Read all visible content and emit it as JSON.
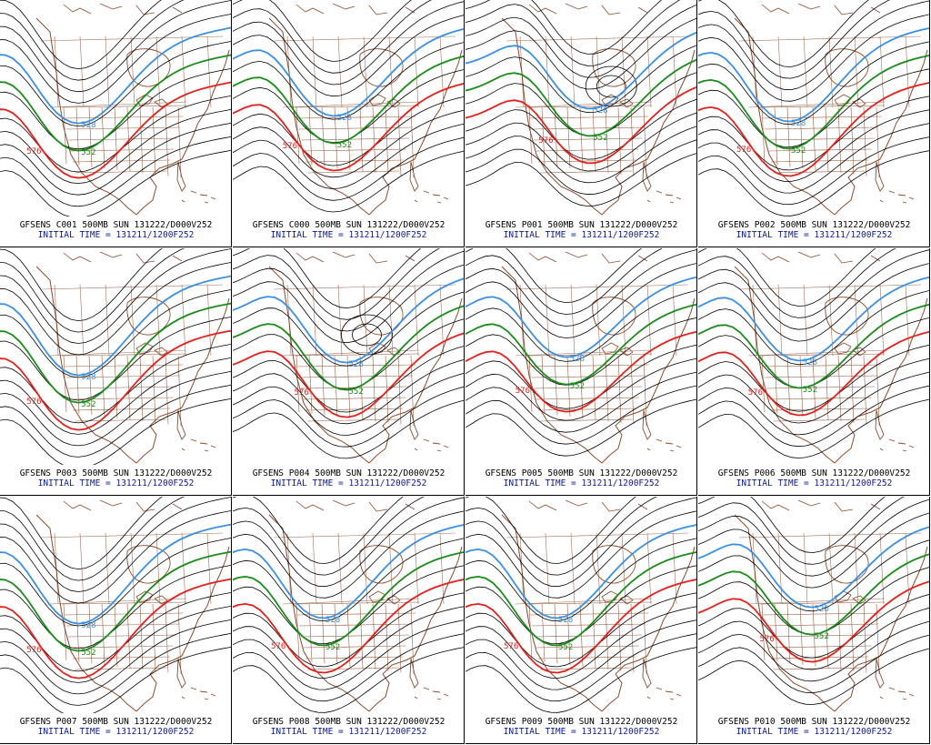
{
  "figure": {
    "contours": {
      "blue": {
        "value": "528",
        "color": "#3b8fe0"
      },
      "green": {
        "value": "552",
        "color": "#1a8a1a"
      },
      "red": {
        "value": "576",
        "color": "#e0201a"
      },
      "black": {
        "color": "#000000"
      }
    },
    "map_color": "#8b4a2b",
    "panels": [
      {
        "member": "C001",
        "title": "GFSENS C001 500MB SUN 131222/D000V252",
        "initial": "INITIAL TIME = 131211/1200F252",
        "trough": 0.35,
        "depth": 1.0,
        "cutoff": false
      },
      {
        "member": "C000",
        "title": "GFSENS C000 500MB SUN 131222/D000V252",
        "initial": "INITIAL TIME = 131211/1200F252",
        "trough": 0.45,
        "depth": 0.95,
        "cutoff": false
      },
      {
        "member": "P001",
        "title": "GFSENS P001 500MB SUN 131222/D000V252",
        "initial": "INITIAL TIME = 131211/1200F252",
        "trough": 0.55,
        "depth": 0.9,
        "cutoff": true
      },
      {
        "member": "P002",
        "title": "GFSENS P002 500MB SUN 131222/D000V252",
        "initial": "INITIAL TIME = 131211/1200F252",
        "trough": 0.4,
        "depth": 1.0,
        "cutoff": false
      },
      {
        "member": "P003",
        "title": "GFSENS P003 500MB SUN 131222/D000V252",
        "initial": "INITIAL TIME = 131211/1200F252",
        "trough": 0.35,
        "depth": 1.05,
        "cutoff": false
      },
      {
        "member": "P004",
        "title": "GFSENS P004 500MB SUN 131222/D000V252",
        "initial": "INITIAL TIME = 131211/1200F252",
        "trough": 0.5,
        "depth": 0.95,
        "cutoff": true
      },
      {
        "member": "P005",
        "title": "GFSENS P005 500MB SUN 131222/D000V252",
        "initial": "INITIAL TIME = 131211/1200F252",
        "trough": 0.45,
        "depth": 0.85,
        "cutoff": false
      },
      {
        "member": "P006",
        "title": "GFSENS P006 500MB SUN 131222/D000V252",
        "initial": "INITIAL TIME = 131211/1200F252",
        "trough": 0.45,
        "depth": 0.9,
        "cutoff": false
      },
      {
        "member": "P007",
        "title": "GFSENS P007 500MB SUN 131222/D000V252",
        "initial": "INITIAL TIME = 131211/1200F252",
        "trough": 0.35,
        "depth": 1.05,
        "cutoff": false
      },
      {
        "member": "P008",
        "title": "GFSENS P008 500MB SUN 131222/D000V252",
        "initial": "INITIAL TIME = 131211/1200F252",
        "trough": 0.4,
        "depth": 1.0,
        "cutoff": false
      },
      {
        "member": "P009",
        "title": "GFSENS P009 500MB SUN 131222/D000V252",
        "initial": "INITIAL TIME = 131211/1200F252",
        "trough": 0.4,
        "depth": 1.0,
        "cutoff": false
      },
      {
        "member": "P010",
        "title": "GFSENS P010 500MB SUN 131222/D000V252",
        "initial": "INITIAL TIME = 131211/1200F252",
        "trough": 0.5,
        "depth": 0.9,
        "cutoff": false
      }
    ]
  }
}
